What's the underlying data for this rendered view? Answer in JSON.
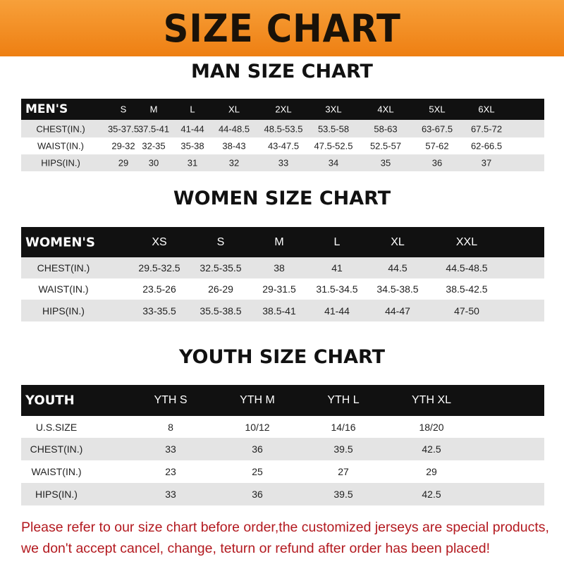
{
  "title": "SIZE CHART",
  "colors": {
    "banner": "#ee7f12",
    "header_row": "#111111",
    "stripe": "#e4e4e4",
    "note": "#b3191f"
  },
  "men": {
    "title": "MAN SIZE CHART",
    "header": "MEN'S",
    "columns": [
      "S",
      "M",
      "L",
      "XL",
      "2XL",
      "3XL",
      "4XL",
      "5XL",
      "6XL"
    ],
    "rows": [
      {
        "label": "CHEST(IN.)",
        "values": [
          "35-37.5",
          "37.5-41",
          "41-44",
          "44-48.5",
          "48.5-53.5",
          "53.5-58",
          "58-63",
          "63-67.5",
          "67.5-72"
        ]
      },
      {
        "label": "WAIST(IN.)",
        "values": [
          "29-32",
          "32-35",
          "35-38",
          "38-43",
          "43-47.5",
          "47.5-52.5",
          "52.5-57",
          "57-62",
          "62-66.5"
        ]
      },
      {
        "label": "HIPS(IN.)",
        "values": [
          "29",
          "30",
          "31",
          "32",
          "33",
          "34",
          "35",
          "36",
          "37"
        ]
      }
    ]
  },
  "women": {
    "title": "WOMEN SIZE CHART",
    "header": "WOMEN'S",
    "columns": [
      "XS",
      "S",
      "M",
      "L",
      "XL",
      "XXL"
    ],
    "rows": [
      {
        "label": "CHEST(IN.)",
        "values": [
          "29.5-32.5",
          "32.5-35.5",
          "38",
          "41",
          "44.5",
          "44.5-48.5"
        ]
      },
      {
        "label": "WAIST(IN.)",
        "values": [
          "23.5-26",
          "26-29",
          "29-31.5",
          "31.5-34.5",
          "34.5-38.5",
          "38.5-42.5"
        ]
      },
      {
        "label": "HIPS(IN.)",
        "values": [
          "33-35.5",
          "35.5-38.5",
          "38.5-41",
          "41-44",
          "44-47",
          "47-50"
        ]
      }
    ]
  },
  "youth": {
    "title": "YOUTH SIZE CHART",
    "header": "YOUTH",
    "columns": [
      "YTH S",
      "YTH M",
      "YTH L",
      "YTH XL"
    ],
    "rows": [
      {
        "label": "U.S.SIZE",
        "values": [
          "8",
          "10/12",
          "14/16",
          "18/20"
        ]
      },
      {
        "label": "CHEST(IN.)",
        "values": [
          "33",
          "36",
          "39.5",
          "42.5"
        ]
      },
      {
        "label": "WAIST(IN.)",
        "values": [
          "23",
          "25",
          "27",
          "29"
        ]
      },
      {
        "label": "HIPS(IN.)",
        "values": [
          "33",
          "36",
          "39.5",
          "42.5"
        ]
      }
    ]
  },
  "note": {
    "line1": "Please refer to our size chart before order,the customized jerseys are special products,",
    "line2": "we don't accept cancel, change, teturn or refund after order has been placed!"
  }
}
